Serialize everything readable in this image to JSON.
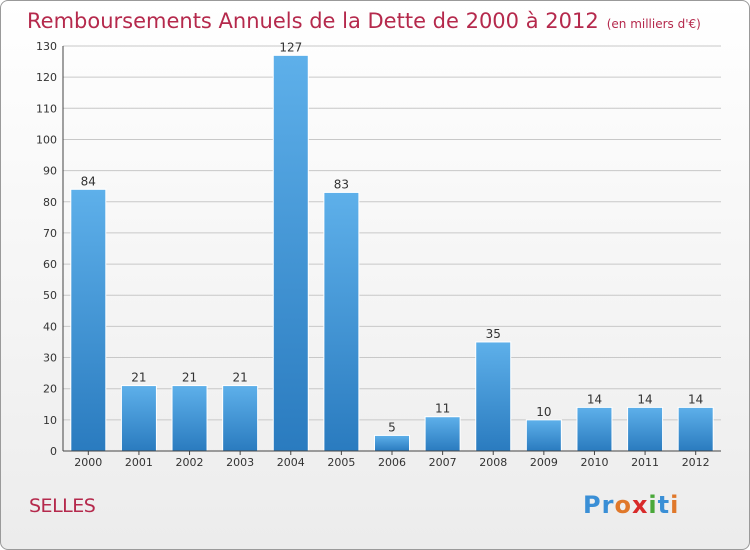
{
  "header": {
    "title": "Remboursements Annuels de la Dette de 2000 à 2012",
    "subtitle": "(en milliers d'€)"
  },
  "footer": {
    "commune": "SELLES",
    "logo_letters": [
      "P",
      "r",
      "o",
      "x",
      "i",
      "t",
      "i"
    ],
    "logo_colors": [
      "#3a8fd6",
      "#3a8fd6",
      "#e0782a",
      "#d82a2a",
      "#4aa83a",
      "#3a8fd6",
      "#e0782a"
    ]
  },
  "chart_data": {
    "type": "bar",
    "categories": [
      "2000",
      "2001",
      "2002",
      "2003",
      "2004",
      "2005",
      "2006",
      "2007",
      "2008",
      "2009",
      "2010",
      "2011",
      "2012"
    ],
    "values": [
      84,
      21,
      21,
      21,
      127,
      83,
      5,
      11,
      35,
      10,
      14,
      14,
      14
    ],
    "data_labels": [
      "84",
      "21",
      "21",
      "21",
      "127",
      "83",
      "5",
      "11",
      "35",
      "10",
      "14",
      "14",
      "14"
    ],
    "ylim": [
      0,
      130
    ],
    "yticks": [
      0,
      10,
      20,
      30,
      40,
      50,
      60,
      70,
      80,
      90,
      100,
      110,
      120,
      130
    ],
    "grid": true,
    "bar_color": "#4a9de0"
  }
}
